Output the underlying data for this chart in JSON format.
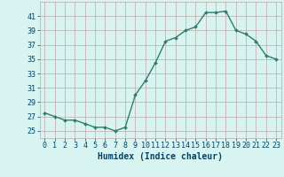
{
  "x": [
    0,
    1,
    2,
    3,
    4,
    5,
    6,
    7,
    8,
    9,
    10,
    11,
    12,
    13,
    14,
    15,
    16,
    17,
    18,
    19,
    20,
    21,
    22,
    23
  ],
  "y": [
    27.5,
    27.0,
    26.5,
    26.5,
    26.0,
    25.5,
    25.5,
    25.0,
    25.5,
    30.0,
    32.0,
    34.5,
    37.5,
    38.0,
    39.0,
    39.5,
    41.5,
    41.5,
    41.7,
    39.0,
    38.5,
    37.5,
    35.5,
    35.0
  ],
  "xlabel": "Humidex (Indice chaleur)",
  "ylim": [
    24,
    43
  ],
  "xlim": [
    -0.5,
    23.5
  ],
  "yticks": [
    25,
    27,
    29,
    31,
    33,
    35,
    37,
    39,
    41
  ],
  "xticks": [
    0,
    1,
    2,
    3,
    4,
    5,
    6,
    7,
    8,
    9,
    10,
    11,
    12,
    13,
    14,
    15,
    16,
    17,
    18,
    19,
    20,
    21,
    22,
    23
  ],
  "line_color": "#2e7d6e",
  "marker_color": "#2e7d6e",
  "bg_color": "#d8f4f0",
  "grid_color": "#c0a8a8",
  "font_color": "#004466",
  "tick_labelsize": 6,
  "xlabel_fontsize": 7
}
